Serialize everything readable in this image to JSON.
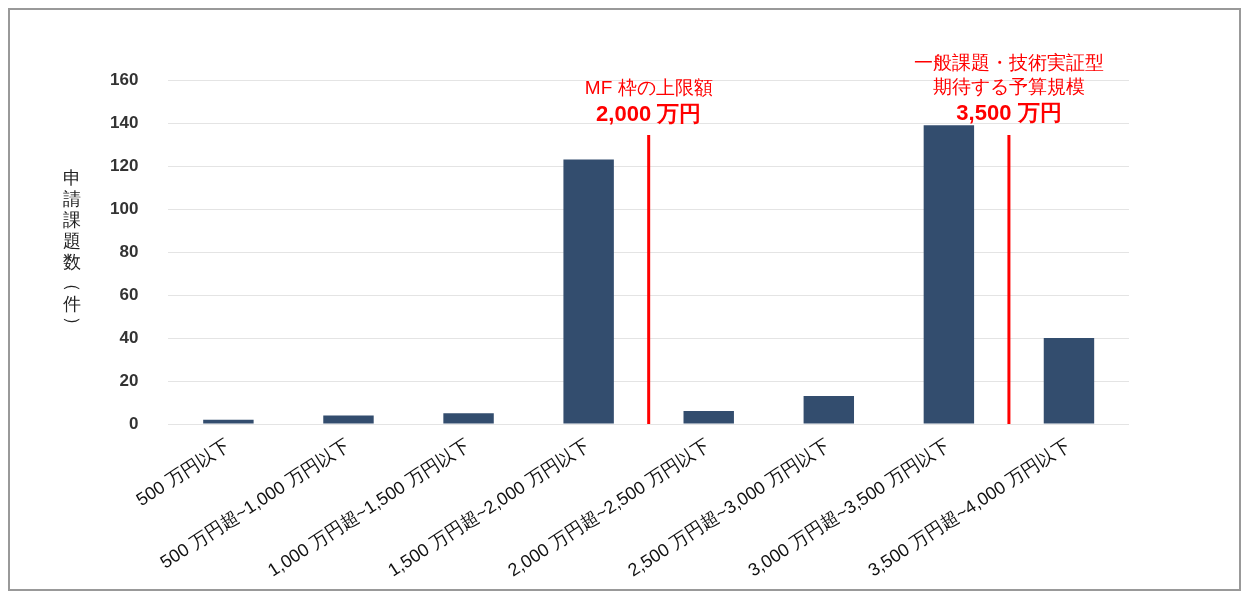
{
  "chart_data": {
    "type": "bar",
    "ylabel": "申請課題数（件）",
    "categories": [
      "500 万円以下",
      "500 万円超~1,000 万円以下",
      "1,000 万円超~1,500 万円以下",
      "1,500 万円超~2,000 万円以下",
      "2,000 万円超~2,500 万円以下",
      "2,500 万円超~3,000 万円以下",
      "3,000 万円超~3,500 万円以下",
      "3,500 万円超~4,000 万円以下"
    ],
    "values": [
      2,
      4,
      5,
      123,
      6,
      13,
      139,
      40
    ],
    "color": "#334d6e",
    "ylim": [
      0,
      160
    ],
    "yticks": [
      0,
      20,
      40,
      60,
      80,
      100,
      120,
      140,
      160
    ],
    "grid": "y",
    "legend": false,
    "annotations": [
      "MF 枠の上限額\n2,000 万円",
      "一般課題・技術実証型期待する予算規模\n3,500 万円"
    ]
  }
}
